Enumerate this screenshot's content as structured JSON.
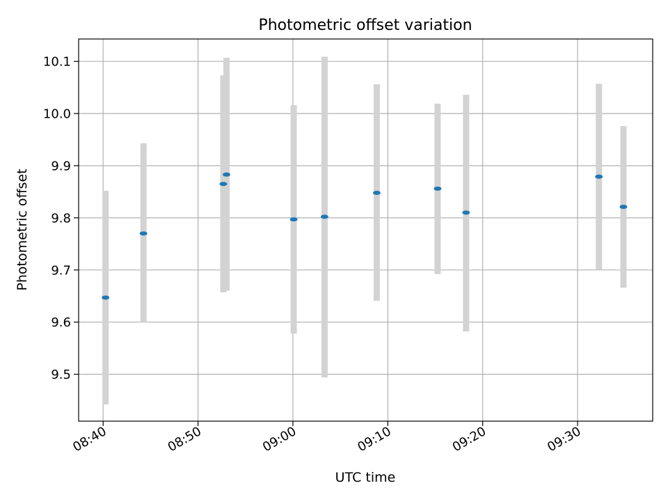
{
  "chart_data": {
    "type": "scatter",
    "title": "Photometric offset variation",
    "xlabel": "UTC time",
    "ylabel": "Photometric offset",
    "x_axis_type": "time",
    "xlim": [
      "08:37:25",
      "09:37:55"
    ],
    "ylim": [
      9.41,
      10.143
    ],
    "x_ticks": [
      "08:40",
      "08:50",
      "09:00",
      "09:10",
      "09:20",
      "09:30"
    ],
    "y_ticks": [
      "9.5",
      "9.6",
      "9.7",
      "9.8",
      "9.9",
      "10.0",
      "10.1"
    ],
    "grid": true,
    "errorbar_color": "#d3d3d3",
    "marker_color": "#1f77b4",
    "points": [
      {
        "time": "08:40:15",
        "y": 9.647,
        "ylow": 9.442,
        "yhigh": 9.852
      },
      {
        "time": "08:44:15",
        "y": 9.77,
        "ylow": 9.6,
        "yhigh": 9.943
      },
      {
        "time": "08:52:40",
        "y": 9.865,
        "ylow": 9.657,
        "yhigh": 10.073
      },
      {
        "time": "08:53:00",
        "y": 9.883,
        "ylow": 9.66,
        "yhigh": 10.107
      },
      {
        "time": "09:00:05",
        "y": 9.797,
        "ylow": 9.578,
        "yhigh": 10.016
      },
      {
        "time": "09:03:20",
        "y": 9.802,
        "ylow": 9.494,
        "yhigh": 10.109
      },
      {
        "time": "09:08:50",
        "y": 9.848,
        "ylow": 9.641,
        "yhigh": 10.056
      },
      {
        "time": "09:15:15",
        "y": 9.856,
        "ylow": 9.692,
        "yhigh": 10.019
      },
      {
        "time": "09:18:15",
        "y": 9.81,
        "ylow": 9.582,
        "yhigh": 10.036
      },
      {
        "time": "09:32:15",
        "y": 9.879,
        "ylow": 9.7,
        "yhigh": 10.057
      },
      {
        "time": "09:34:50",
        "y": 9.821,
        "ylow": 9.666,
        "yhigh": 9.976
      }
    ]
  }
}
